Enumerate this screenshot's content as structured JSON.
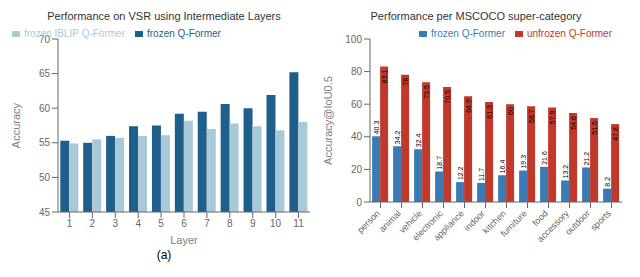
{
  "chart_data": [
    {
      "type": "bar",
      "title": "Performance on VSR using Intermediate Layers",
      "xlabel": "Layer",
      "ylabel": "Accuracy",
      "categories": [
        "1",
        "2",
        "3",
        "4",
        "5",
        "6",
        "7",
        "8",
        "9",
        "10",
        "11"
      ],
      "series": [
        {
          "name": "frozen Q-Former",
          "color": "#1f5f8b",
          "values": [
            55.3,
            55.0,
            56.0,
            57.4,
            57.5,
            59.2,
            59.5,
            60.6,
            60.0,
            61.9,
            65.2
          ]
        },
        {
          "name": "frozen IBLIP Q-Former",
          "color": "#aac9d8",
          "values": [
            54.9,
            55.5,
            55.7,
            56.0,
            56.1,
            58.2,
            57.0,
            57.8,
            57.4,
            56.8,
            58.0
          ]
        }
      ],
      "ylim": [
        45,
        70
      ],
      "yticks": [
        45,
        50,
        55,
        60,
        65,
        70
      ],
      "grid": false,
      "legend": "upper left",
      "annotations": [
        "(a)"
      ]
    },
    {
      "type": "bar",
      "title": "Performance per MSCOCO super-category",
      "ylabel": "Accuracy@IoU0.5",
      "categories": [
        "person",
        "animal",
        "vehicle",
        "electronic",
        "appliance",
        "indoor",
        "kitchen",
        "furniture",
        "food",
        "accessory",
        "outdoor",
        "sports"
      ],
      "series": [
        {
          "name": "frozen Q-Former",
          "color": "#3a7ab5",
          "values": [
            40.3,
            34.2,
            32.4,
            18.7,
            12.2,
            11.7,
            16.4,
            19.3,
            21.6,
            13.2,
            21.2,
            8.2
          ]
        },
        {
          "name": "unfrozen Q-Former",
          "color": "#c0392b",
          "values": [
            83.1,
            78.0,
            73.5,
            70.5,
            64.9,
            61.3,
            60.0,
            58.7,
            57.9,
            54.6,
            51.5,
            47.8
          ]
        }
      ],
      "ylim": [
        0,
        100
      ],
      "yticks": [
        0,
        20,
        40,
        60,
        80,
        100
      ],
      "grid": false,
      "legend": "upper right",
      "data_labels": true
    }
  ]
}
